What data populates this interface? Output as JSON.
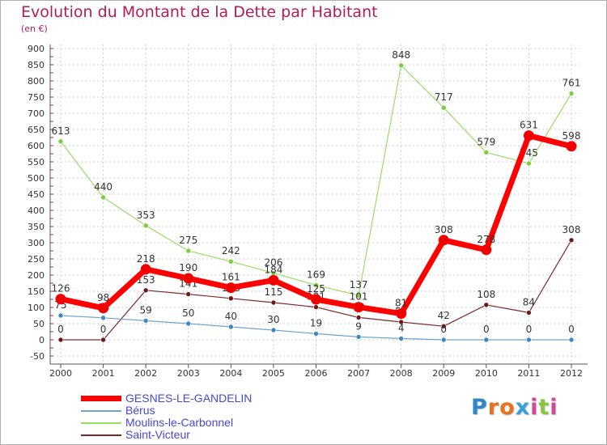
{
  "title": "Evolution du Montant de la Dette par Habitant",
  "unit_label": "(en €)",
  "logo_text": "Proxiti",
  "colors": {
    "title": "#b01c5a",
    "legend_text": "#4747d8",
    "grid": "#cccccc",
    "axis": "#555555"
  },
  "chart_data": {
    "type": "line",
    "title": "Evolution du Montant de la Dette par Habitant",
    "ylabel": "(en €)",
    "xlabel": "",
    "ylim": [
      -50,
      900
    ],
    "y_ticks": [
      -50,
      0,
      50,
      100,
      150,
      200,
      250,
      300,
      350,
      400,
      450,
      500,
      550,
      600,
      650,
      700,
      750,
      800,
      850,
      900
    ],
    "grid": true,
    "legend_position": "bottom-left",
    "categories": [
      "2000",
      "2001",
      "2002",
      "2003",
      "2004",
      "2005",
      "2006",
      "2007",
      "2008",
      "2009",
      "2010",
      "2011",
      "2012"
    ],
    "series": [
      {
        "name": "Moulins-le-Carbonnel",
        "color": "#99dd66",
        "point_color": "#7ccc3c",
        "width": 1.2,
        "values": [
          613,
          440,
          353,
          275,
          242,
          206,
          169,
          137,
          848,
          717,
          579,
          545,
          761
        ]
      },
      {
        "name": "Saint-Victeur",
        "color": "#7a2a2a",
        "point_color": "#6b1a1a",
        "width": 1.2,
        "values": [
          0,
          0,
          153,
          141,
          128,
          115,
          101,
          69,
          55,
          42,
          108,
          84,
          308
        ]
      },
      {
        "name": "Bérus",
        "color": "#6ea3cf",
        "point_color": "#3f86c4",
        "width": 1.2,
        "values": [
          75,
          68,
          59,
          50,
          40,
          30,
          19,
          9,
          4,
          0,
          0,
          0,
          0
        ]
      },
      {
        "name": "GESNES-LE-GANDELIN",
        "color": "#ff0000",
        "point_color": "#ee0000",
        "width": 7,
        "values": [
          126,
          98,
          218,
          190,
          161,
          184,
          125,
          101,
          81,
          308,
          278,
          631,
          598
        ]
      }
    ],
    "legend_order": [
      "GESNES-LE-GANDELIN",
      "Bérus",
      "Moulins-le-Carbonnel",
      "Saint-Victeur"
    ]
  }
}
